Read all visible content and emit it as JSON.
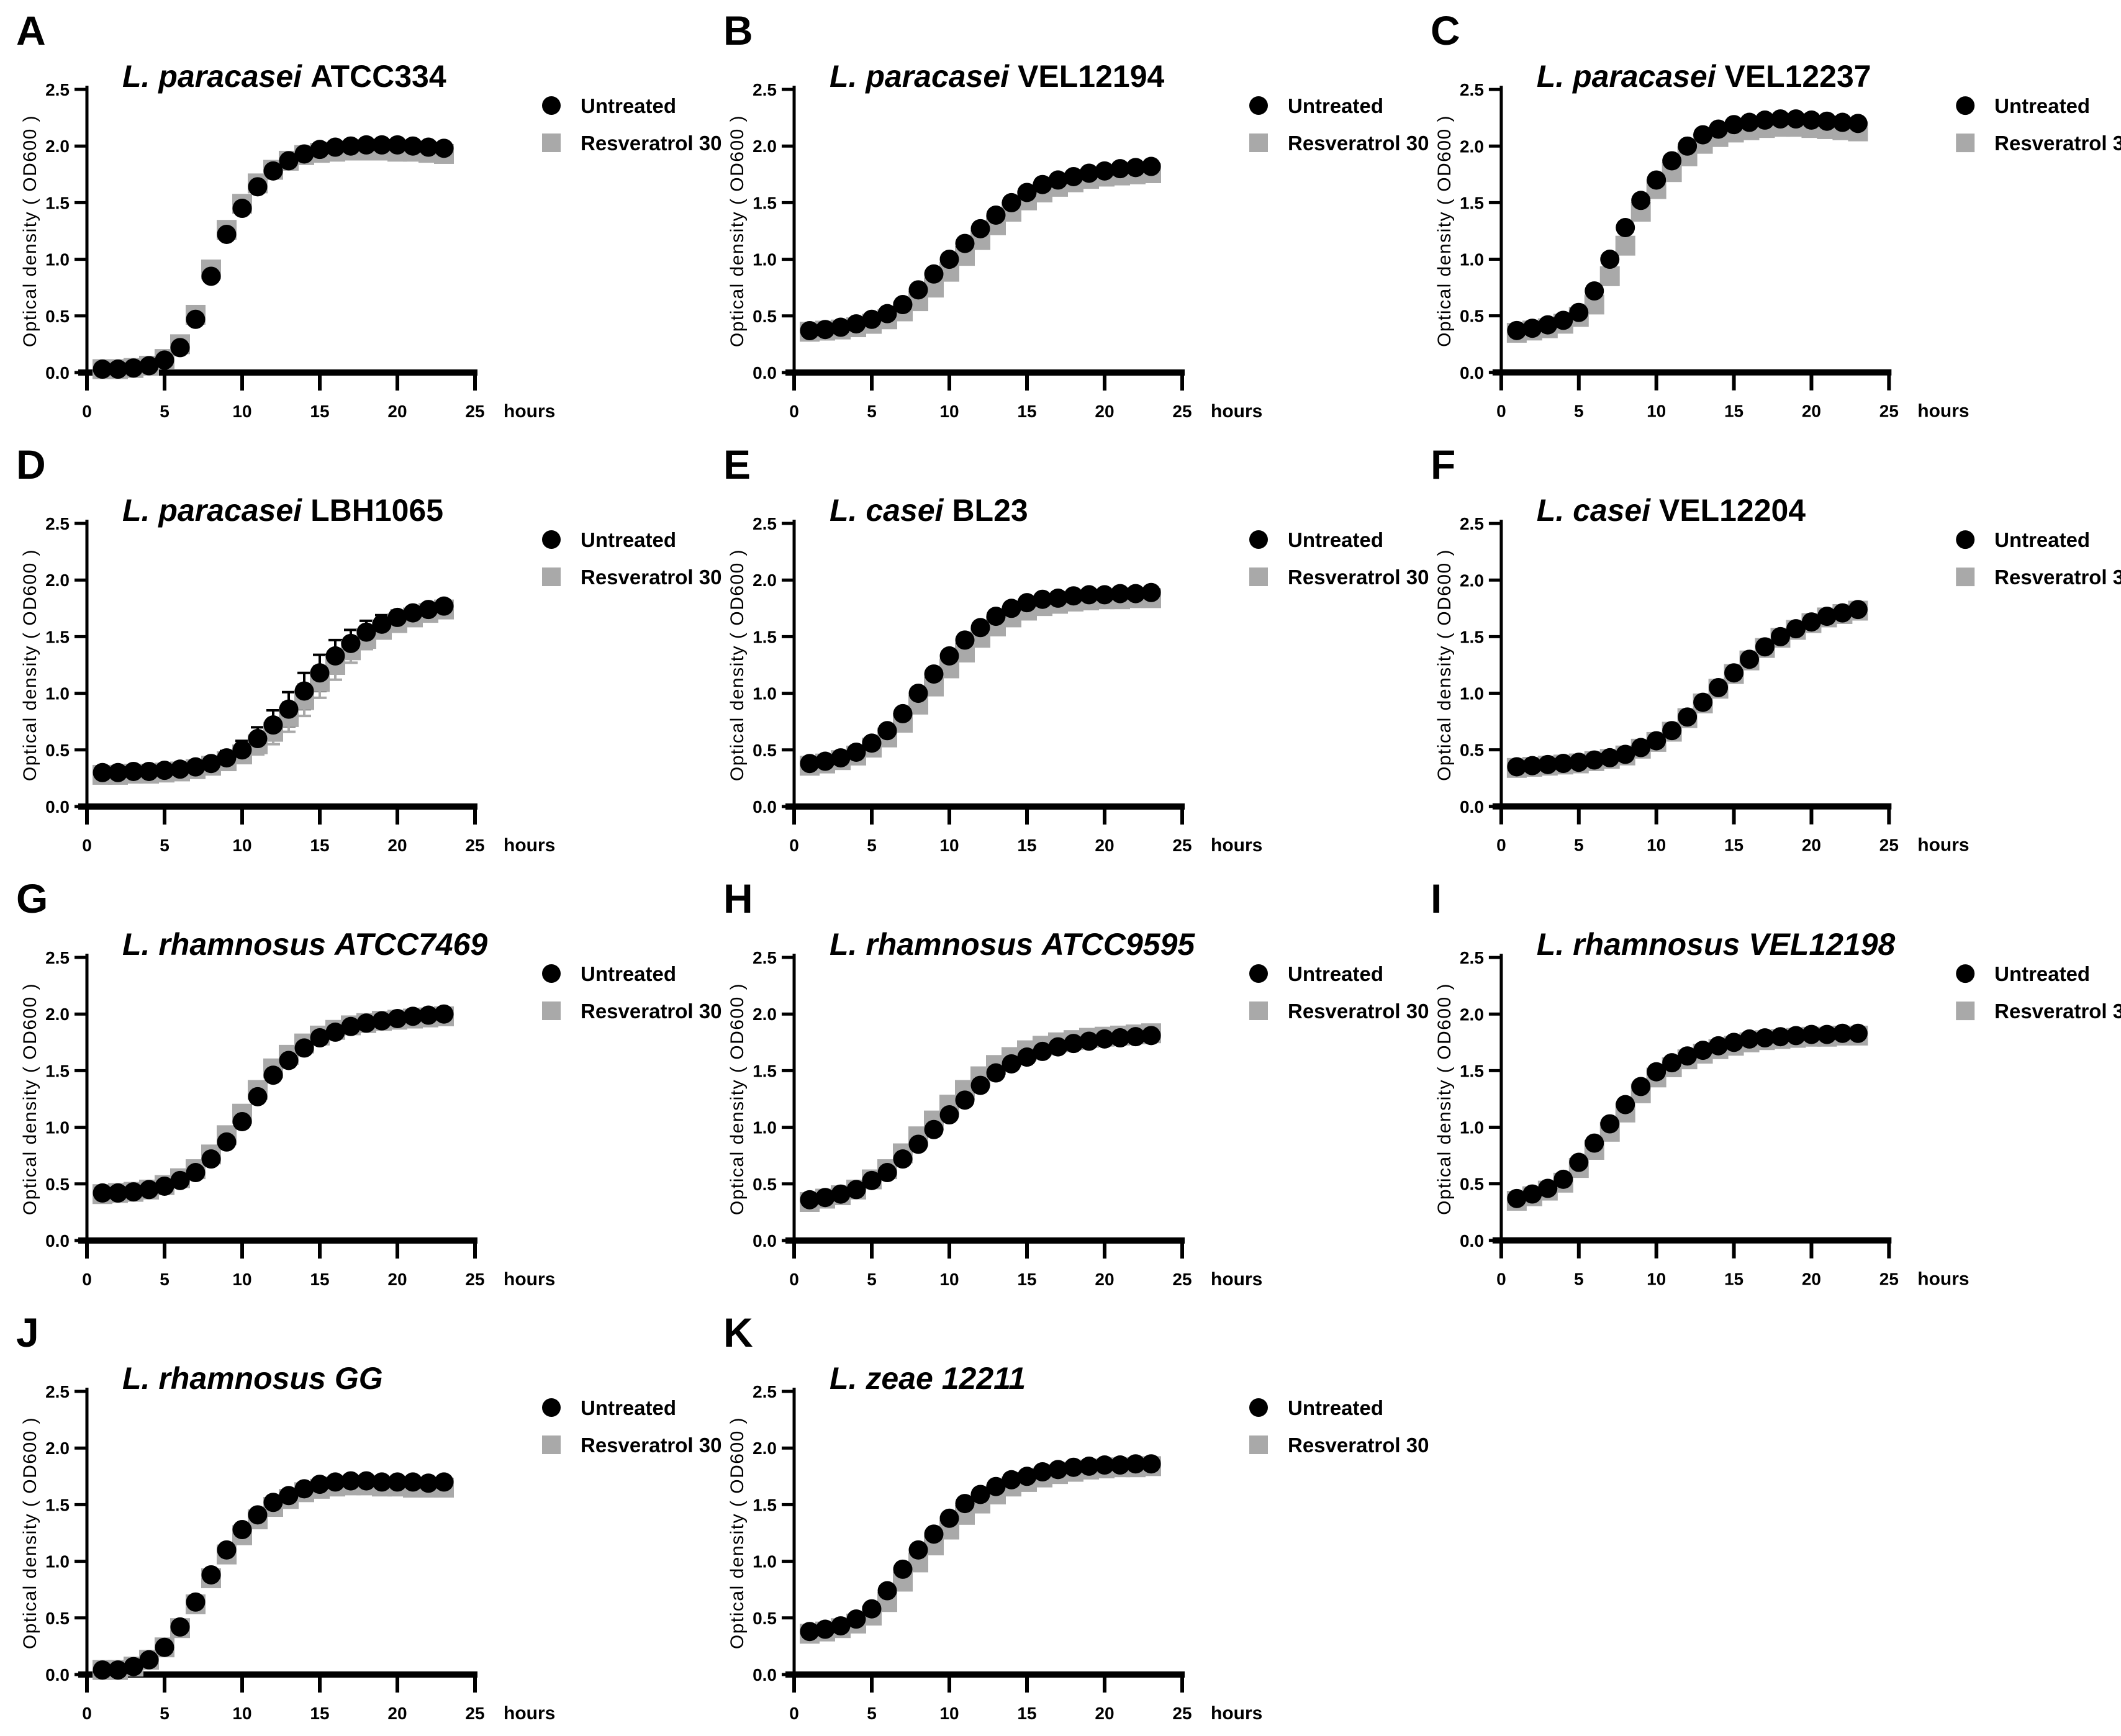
{
  "chart_data": {
    "type": "scatter",
    "figure_kind": "bacterial growth curves, 11 panels",
    "xlabel": "hours",
    "ylabel": "Optical density ( OD600 )",
    "xlim": [
      0,
      25
    ],
    "ylim": [
      0,
      2.5
    ],
    "x": [
      1,
      2,
      3,
      4,
      5,
      6,
      7,
      8,
      9,
      10,
      11,
      12,
      13,
      14,
      15,
      16,
      17,
      18,
      19,
      20,
      21,
      22,
      23
    ],
    "x_tick_labels": [
      "0",
      "5",
      "10",
      "15",
      "20",
      "25"
    ],
    "x_tick_values": [
      0,
      5,
      10,
      15,
      20,
      25
    ],
    "y_tick_labels": [
      "0.0",
      "0.5",
      "1.0",
      "1.5",
      "2.0",
      "2.5"
    ],
    "y_tick_values": [
      0,
      0.5,
      1.0,
      1.5,
      2.0,
      2.5
    ],
    "grid": false,
    "legend_position": "right of plot, top",
    "legend": [
      {
        "label": "Untreated",
        "marker": "circle",
        "color": "#000000"
      },
      {
        "label": "Resveratrol 30",
        "marker": "square",
        "color": "#a9a9a9"
      }
    ],
    "panels": [
      {
        "letter": "A",
        "title_species": "L. paracasei",
        "title_strain": "ATCC334",
        "strain_italic": false,
        "series": [
          {
            "name": "Untreated",
            "values": [
              0.03,
              0.03,
              0.04,
              0.06,
              0.11,
              0.22,
              0.47,
              0.85,
              1.22,
              1.45,
              1.64,
              1.78,
              1.87,
              1.93,
              1.97,
              1.99,
              2.0,
              2.01,
              2.01,
              2.01,
              2.0,
              1.99,
              1.98
            ]
          },
          {
            "name": "Resveratrol 30",
            "values": [
              0.03,
              0.03,
              0.04,
              0.06,
              0.12,
              0.25,
              0.51,
              0.91,
              1.26,
              1.49,
              1.67,
              1.79,
              1.87,
              1.92,
              1.94,
              1.95,
              1.96,
              1.96,
              1.96,
              1.95,
              1.95,
              1.94,
              1.93
            ]
          }
        ]
      },
      {
        "letter": "B",
        "title_species": "L. paracasei",
        "title_strain": "VEL12194",
        "strain_italic": false,
        "series": [
          {
            "name": "Untreated",
            "values": [
              0.37,
              0.38,
              0.4,
              0.43,
              0.47,
              0.52,
              0.6,
              0.73,
              0.87,
              1.0,
              1.14,
              1.27,
              1.39,
              1.5,
              1.59,
              1.66,
              1.7,
              1.73,
              1.76,
              1.78,
              1.8,
              1.81,
              1.82
            ]
          },
          {
            "name": "Resveratrol 30",
            "values": [
              0.36,
              0.37,
              0.38,
              0.4,
              0.43,
              0.47,
              0.54,
              0.63,
              0.75,
              0.89,
              1.03,
              1.17,
              1.3,
              1.42,
              1.52,
              1.59,
              1.64,
              1.68,
              1.71,
              1.73,
              1.74,
              1.75,
              1.76
            ]
          }
        ]
      },
      {
        "letter": "C",
        "title_species": "L. paracasei",
        "title_strain": "VEL12237",
        "strain_italic": false,
        "series": [
          {
            "name": "Untreated",
            "values": [
              0.37,
              0.39,
              0.42,
              0.46,
              0.53,
              0.72,
              1.0,
              1.28,
              1.52,
              1.7,
              1.87,
              2.0,
              2.1,
              2.15,
              2.19,
              2.21,
              2.23,
              2.24,
              2.24,
              2.23,
              2.22,
              2.21,
              2.2
            ]
          },
          {
            "name": "Resveratrol 30",
            "values": [
              0.35,
              0.37,
              0.39,
              0.43,
              0.49,
              0.6,
              0.85,
              1.12,
              1.42,
              1.62,
              1.77,
              1.91,
              2.02,
              2.08,
              2.12,
              2.14,
              2.16,
              2.17,
              2.17,
              2.16,
              2.15,
              2.14,
              2.13
            ]
          }
        ]
      },
      {
        "letter": "D",
        "title_species": "L. paracasei",
        "title_strain": "LBH1065",
        "strain_italic": false,
        "series": [
          {
            "name": "Untreated",
            "values": [
              0.3,
              0.3,
              0.31,
              0.31,
              0.32,
              0.33,
              0.35,
              0.38,
              0.43,
              0.5,
              0.6,
              0.72,
              0.86,
              1.02,
              1.18,
              1.33,
              1.44,
              1.54,
              1.61,
              1.67,
              1.71,
              1.74,
              1.77
            ],
            "errors": [
              0.02,
              0.02,
              0.02,
              0.02,
              0.02,
              0.03,
              0.03,
              0.04,
              0.06,
              0.08,
              0.1,
              0.13,
              0.15,
              0.16,
              0.16,
              0.14,
              0.12,
              0.1,
              0.08,
              0.06,
              0.05,
              0.04,
              0.03
            ]
          },
          {
            "name": "Resveratrol 30",
            "values": [
              0.28,
              0.28,
              0.29,
              0.29,
              0.3,
              0.31,
              0.33,
              0.36,
              0.4,
              0.46,
              0.55,
              0.66,
              0.79,
              0.94,
              1.1,
              1.25,
              1.38,
              1.48,
              1.56,
              1.62,
              1.67,
              1.71,
              1.74
            ],
            "errors": [
              0.02,
              0.02,
              0.02,
              0.02,
              0.02,
              0.02,
              0.03,
              0.04,
              0.05,
              0.07,
              0.09,
              0.11,
              0.13,
              0.14,
              0.14,
              0.13,
              0.11,
              0.09,
              0.07,
              0.06,
              0.05,
              0.04,
              0.03
            ]
          }
        ]
      },
      {
        "letter": "E",
        "title_species": "L. casei",
        "title_strain": "BL23",
        "strain_italic": false,
        "series": [
          {
            "name": "Untreated",
            "values": [
              0.38,
              0.4,
              0.43,
              0.48,
              0.56,
              0.67,
              0.82,
              1.0,
              1.17,
              1.33,
              1.47,
              1.58,
              1.68,
              1.75,
              1.8,
              1.83,
              1.84,
              1.86,
              1.87,
              1.87,
              1.88,
              1.88,
              1.89
            ]
          },
          {
            "name": "Resveratrol 30",
            "values": [
              0.36,
              0.38,
              0.41,
              0.45,
              0.52,
              0.61,
              0.74,
              0.9,
              1.06,
              1.22,
              1.36,
              1.49,
              1.59,
              1.67,
              1.73,
              1.77,
              1.79,
              1.81,
              1.82,
              1.83,
              1.83,
              1.84,
              1.84
            ]
          }
        ]
      },
      {
        "letter": "F",
        "title_species": "L. casei",
        "title_strain": "VEL12204",
        "strain_italic": false,
        "series": [
          {
            "name": "Untreated",
            "values": [
              0.35,
              0.36,
              0.37,
              0.38,
              0.39,
              0.41,
              0.43,
              0.46,
              0.52,
              0.58,
              0.67,
              0.79,
              0.92,
              1.05,
              1.18,
              1.3,
              1.41,
              1.5,
              1.57,
              1.63,
              1.68,
              1.71,
              1.74
            ]
          },
          {
            "name": "Resveratrol 30",
            "values": [
              0.34,
              0.35,
              0.36,
              0.37,
              0.38,
              0.4,
              0.42,
              0.45,
              0.51,
              0.57,
              0.66,
              0.78,
              0.91,
              1.04,
              1.17,
              1.29,
              1.4,
              1.49,
              1.56,
              1.62,
              1.67,
              1.7,
              1.73
            ]
          }
        ]
      },
      {
        "letter": "G",
        "title_species": "L. rhamnosus",
        "title_strain": "ATCC7469",
        "strain_italic": true,
        "series": [
          {
            "name": "Untreated",
            "values": [
              0.42,
              0.42,
              0.43,
              0.45,
              0.48,
              0.53,
              0.6,
              0.72,
              0.87,
              1.05,
              1.27,
              1.46,
              1.59,
              1.7,
              1.79,
              1.84,
              1.89,
              1.92,
              1.94,
              1.96,
              1.98,
              1.99,
              2.0
            ]
          },
          {
            "name": "Resveratrol 30",
            "values": [
              0.41,
              0.42,
              0.43,
              0.45,
              0.49,
              0.55,
              0.63,
              0.76,
              0.93,
              1.12,
              1.33,
              1.52,
              1.64,
              1.74,
              1.81,
              1.86,
              1.9,
              1.92,
              1.94,
              1.95,
              1.96,
              1.97,
              1.98
            ]
          }
        ]
      },
      {
        "letter": "H",
        "title_species": "L. rhamnosus",
        "title_strain": "ATCC9595",
        "strain_italic": true,
        "series": [
          {
            "name": "Untreated",
            "values": [
              0.36,
              0.38,
              0.41,
              0.45,
              0.53,
              0.6,
              0.72,
              0.85,
              0.98,
              1.11,
              1.24,
              1.37,
              1.48,
              1.56,
              1.62,
              1.67,
              1.71,
              1.74,
              1.76,
              1.78,
              1.79,
              1.8,
              1.81
            ]
          },
          {
            "name": "Resveratrol 30",
            "values": [
              0.34,
              0.37,
              0.4,
              0.45,
              0.54,
              0.63,
              0.77,
              0.92,
              1.06,
              1.2,
              1.33,
              1.45,
              1.55,
              1.62,
              1.68,
              1.72,
              1.75,
              1.77,
              1.79,
              1.8,
              1.81,
              1.82,
              1.83
            ]
          }
        ]
      },
      {
        "letter": "I",
        "title_species": "L. rhamnosus",
        "title_strain": "VEL12198",
        "strain_italic": true,
        "series": [
          {
            "name": "Untreated",
            "values": [
              0.37,
              0.41,
              0.46,
              0.54,
              0.69,
              0.86,
              1.03,
              1.2,
              1.36,
              1.49,
              1.57,
              1.63,
              1.68,
              1.72,
              1.75,
              1.78,
              1.79,
              1.8,
              1.81,
              1.82,
              1.82,
              1.83,
              1.83
            ]
          },
          {
            "name": "Resveratrol 30",
            "values": [
              0.35,
              0.39,
              0.44,
              0.51,
              0.64,
              0.8,
              0.96,
              1.13,
              1.3,
              1.44,
              1.53,
              1.6,
              1.65,
              1.69,
              1.72,
              1.75,
              1.77,
              1.78,
              1.79,
              1.8,
              1.8,
              1.81,
              1.81
            ]
          }
        ]
      },
      {
        "letter": "J",
        "title_species": "L. rhamnosus",
        "title_strain": "GG",
        "strain_italic": true,
        "series": [
          {
            "name": "Untreated",
            "values": [
              0.04,
              0.04,
              0.07,
              0.13,
              0.24,
              0.42,
              0.64,
              0.88,
              1.1,
              1.28,
              1.41,
              1.52,
              1.58,
              1.64,
              1.68,
              1.7,
              1.71,
              1.71,
              1.7,
              1.7,
              1.7,
              1.69,
              1.7
            ]
          },
          {
            "name": "Resveratrol 30",
            "values": [
              0.04,
              0.04,
              0.07,
              0.13,
              0.24,
              0.41,
              0.62,
              0.85,
              1.06,
              1.23,
              1.37,
              1.48,
              1.55,
              1.61,
              1.64,
              1.66,
              1.67,
              1.67,
              1.66,
              1.66,
              1.65,
              1.65,
              1.65
            ]
          }
        ]
      },
      {
        "letter": "K",
        "title_species": "L. zeae",
        "title_strain": "12211",
        "strain_italic": true,
        "series": [
          {
            "name": "Untreated",
            "values": [
              0.38,
              0.4,
              0.43,
              0.49,
              0.58,
              0.74,
              0.93,
              1.1,
              1.24,
              1.38,
              1.51,
              1.59,
              1.66,
              1.72,
              1.75,
              1.79,
              1.81,
              1.83,
              1.84,
              1.85,
              1.85,
              1.86,
              1.86
            ]
          },
          {
            "name": "Resveratrol 30",
            "values": [
              0.36,
              0.38,
              0.41,
              0.45,
              0.52,
              0.64,
              0.82,
              0.99,
              1.14,
              1.28,
              1.41,
              1.51,
              1.59,
              1.66,
              1.7,
              1.74,
              1.77,
              1.79,
              1.81,
              1.82,
              1.83,
              1.83,
              1.84
            ]
          }
        ]
      }
    ]
  }
}
